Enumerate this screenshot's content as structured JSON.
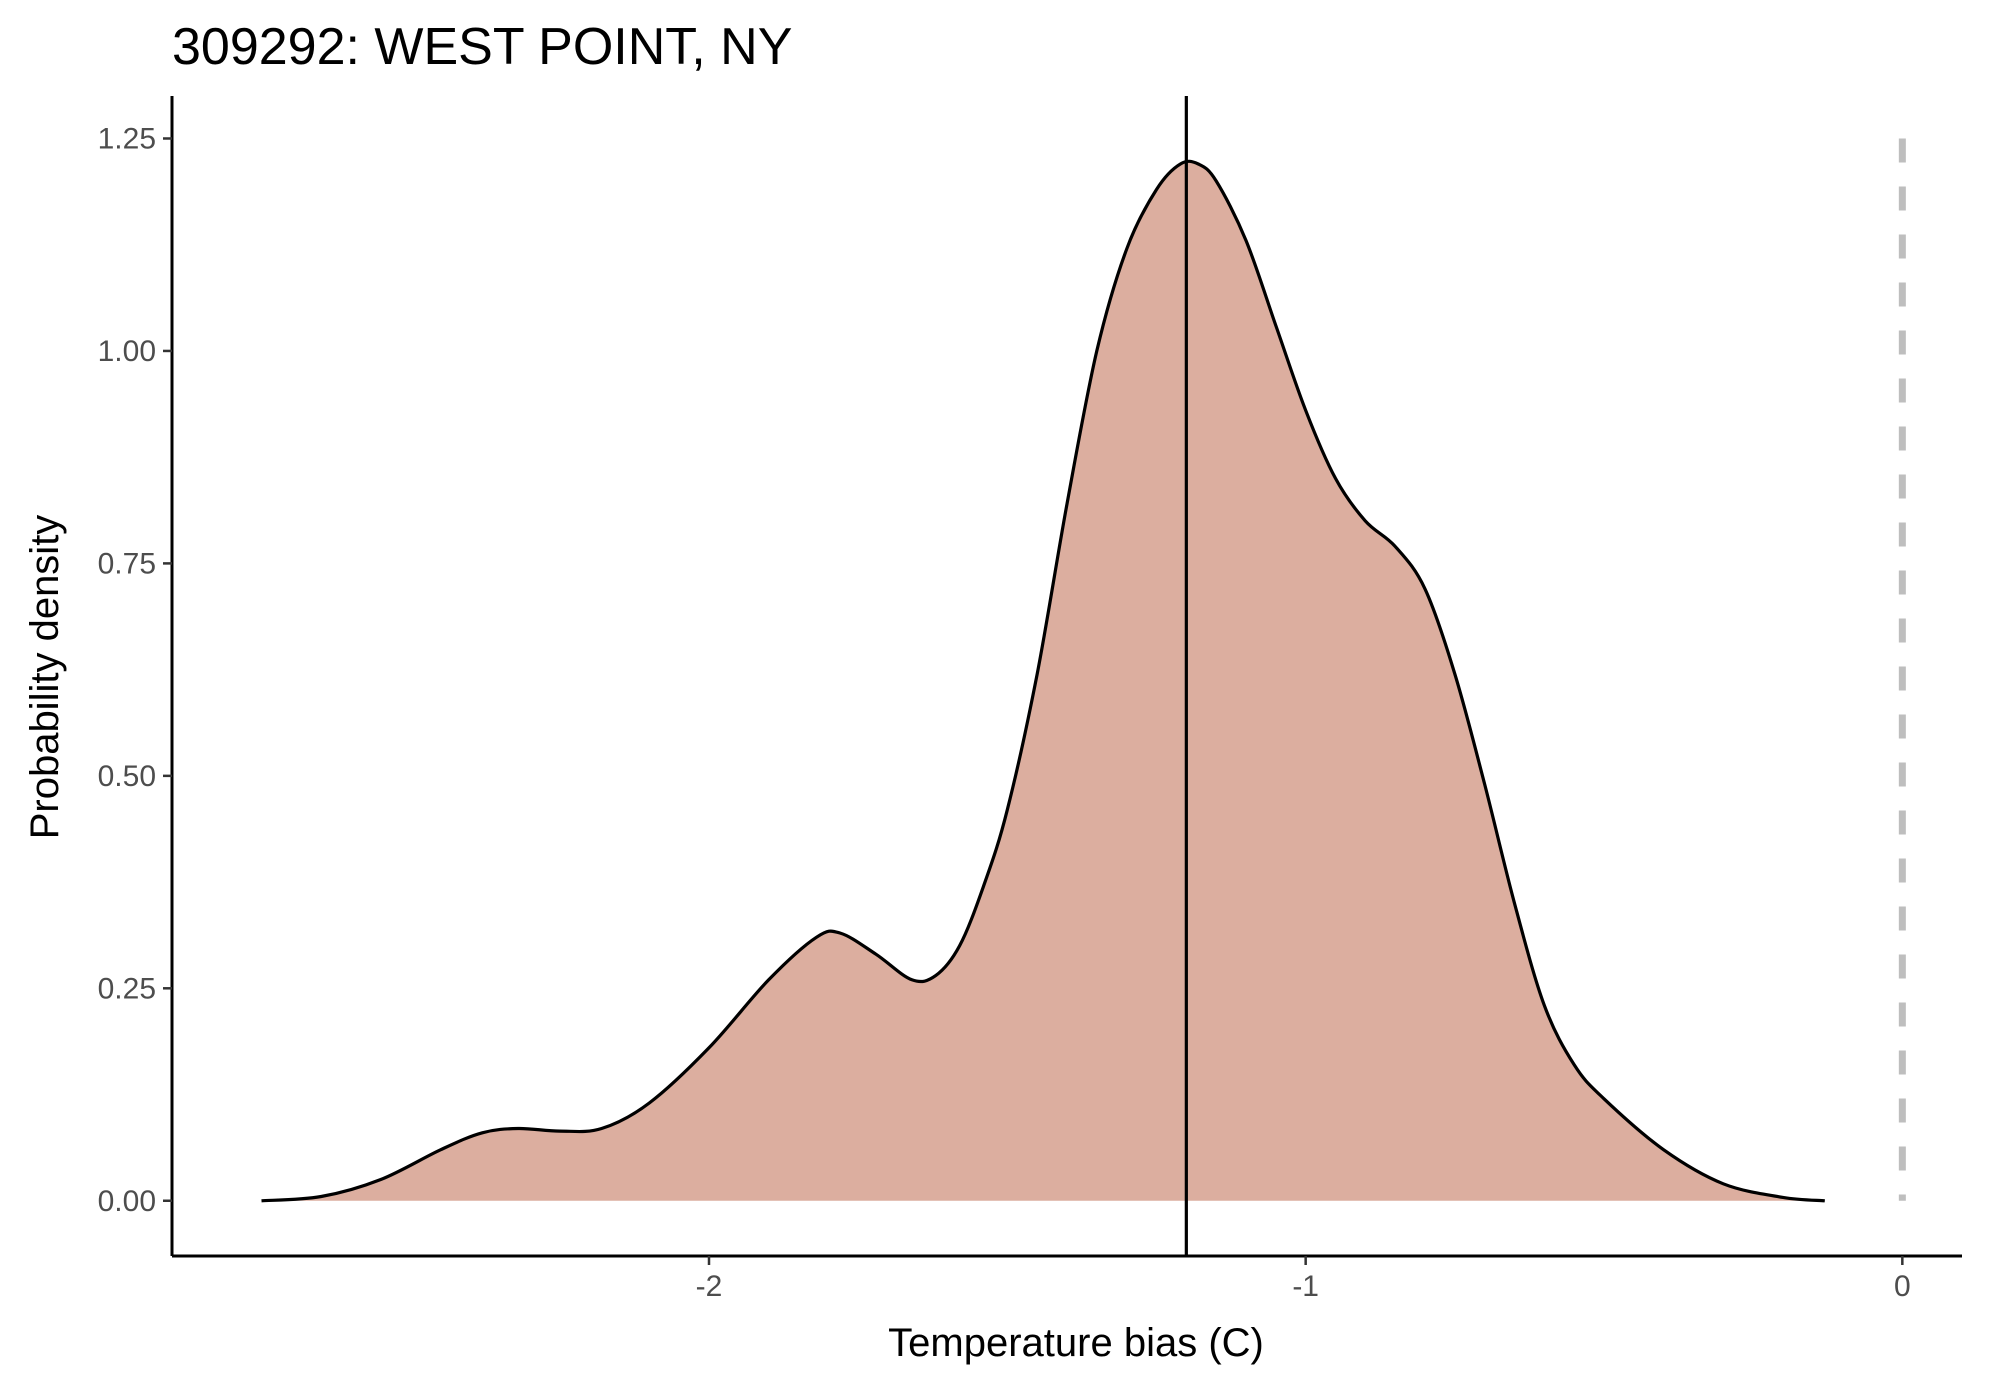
{
  "chart_data": {
    "type": "area",
    "title": "309292: WEST POINT, NY",
    "xlabel": "Temperature bias (C)",
    "ylabel": "Probability density",
    "xlim": [
      -2.9,
      0.1
    ],
    "ylim": [
      -0.065,
      1.3
    ],
    "x_ticks": [
      {
        "value": -2,
        "label": "-2"
      },
      {
        "value": -1,
        "label": "-1"
      },
      {
        "value": 0,
        "label": "0"
      }
    ],
    "y_ticks": [
      {
        "value": 0,
        "label": "0.00"
      },
      {
        "value": 0.25,
        "label": "0.25"
      },
      {
        "value": 0.5,
        "label": "0.50"
      },
      {
        "value": 0.75,
        "label": "0.75"
      },
      {
        "value": 1.0,
        "label": "1.00"
      },
      {
        "value": 1.25,
        "label": "1.25"
      }
    ],
    "grid": false,
    "legend": "none",
    "fill_color": "#dcae9f",
    "line_color": "#000000",
    "series": [
      {
        "x": [
          -2.75,
          -2.65,
          -2.55,
          -2.45,
          -2.38,
          -2.32,
          -2.25,
          -2.18,
          -2.1,
          -2.0,
          -1.9,
          -1.82,
          -1.78,
          -1.72,
          -1.66,
          -1.62,
          -1.58,
          -1.54,
          -1.5,
          -1.45,
          -1.4,
          -1.35,
          -1.3,
          -1.25,
          -1.21,
          -1.18,
          -1.15,
          -1.1,
          -1.05,
          -1.0,
          -0.95,
          -0.9,
          -0.85,
          -0.8,
          -0.75,
          -0.7,
          -0.65,
          -0.6,
          -0.55,
          -0.5,
          -0.4,
          -0.3,
          -0.2,
          -0.13
        ],
        "y": [
          0.0,
          0.005,
          0.025,
          0.06,
          0.08,
          0.085,
          0.082,
          0.085,
          0.115,
          0.18,
          0.26,
          0.31,
          0.315,
          0.29,
          0.26,
          0.265,
          0.3,
          0.37,
          0.46,
          0.62,
          0.82,
          1.0,
          1.12,
          1.19,
          1.22,
          1.22,
          1.2,
          1.13,
          1.03,
          0.93,
          0.85,
          0.8,
          0.77,
          0.72,
          0.62,
          0.49,
          0.35,
          0.23,
          0.16,
          0.12,
          0.06,
          0.02,
          0.004,
          0.0
        ]
      }
    ],
    "vertical_lines": [
      {
        "x": -1.2,
        "style": "solid",
        "color": "#000000"
      },
      {
        "x": 0,
        "style": "dashed",
        "color": "#bebebe"
      }
    ]
  }
}
